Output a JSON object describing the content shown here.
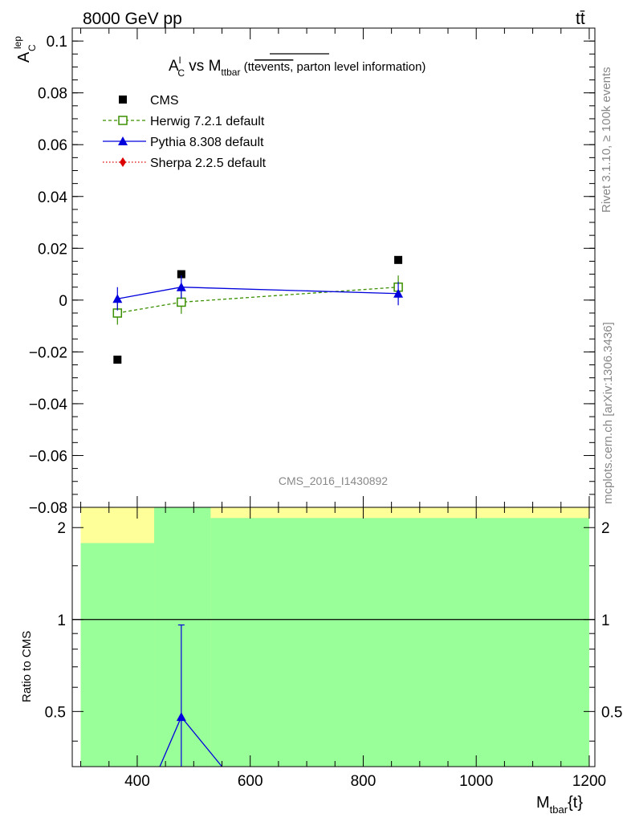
{
  "header": {
    "energy_label": "8000 GeV pp",
    "process_label": "tt̄"
  },
  "side": {
    "rivet_label": "Rivet 3.1.10, ≥ 100k events",
    "source_label": "mcplots.cern.ch [arXiv:1306.3436]"
  },
  "chart_data": [
    {
      "type": "scatter",
      "title_parts": {
        "a": "A",
        "a_sup": "l",
        "a_sub": "C",
        "vs": " vs M",
        "vs_sub": "ttbar",
        "paren_open": " (t",
        "paren_t": "t",
        "overline": "events,",
        "rest": " parton level information)"
      },
      "ylabel_parts": {
        "main": "A",
        "sup": "lep",
        "sub": "C"
      },
      "analysis_label": "CMS_2016_I1430892",
      "ylim": [
        -0.08,
        0.105
      ],
      "xlim": [
        285,
        1210
      ],
      "yticks": [
        {
          "v": 0.1,
          "label": "0.1"
        },
        {
          "v": 0.08,
          "label": "0.08"
        },
        {
          "v": 0.06,
          "label": "0.06"
        },
        {
          "v": 0.04,
          "label": "0.04"
        },
        {
          "v": 0.02,
          "label": "0.02"
        },
        {
          "v": 0,
          "label": "0"
        },
        {
          "v": -0.02,
          "label": "−0.02"
        },
        {
          "v": -0.04,
          "label": "−0.04"
        },
        {
          "v": -0.06,
          "label": "−0.06"
        },
        {
          "v": -0.08,
          "label": "−0.08"
        }
      ],
      "legend_position": "top-left",
      "series": [
        {
          "name": "CMS",
          "color": "#000000",
          "marker": "square",
          "line": "none",
          "points": [
            {
              "x": 365,
              "y": -0.023,
              "err": 0
            },
            {
              "x": 478,
              "y": 0.01,
              "err": 0
            },
            {
              "x": 862,
              "y": 0.0155,
              "err": 0
            }
          ]
        },
        {
          "name": "Herwig 7.2.1 default",
          "color": "#3a8f00",
          "marker": "open-square",
          "line": "dashed",
          "points": [
            {
              "x": 365,
              "y": -0.005,
              "err": 0.0045
            },
            {
              "x": 478,
              "y": -0.0008,
              "err": 0.0045
            },
            {
              "x": 862,
              "y": 0.005,
              "err": 0.0045
            }
          ]
        },
        {
          "name": "Pythia 8.308 default",
          "color": "#0000dd",
          "marker": "triangle",
          "line": "solid",
          "points": [
            {
              "x": 365,
              "y": 0.0005,
              "err": 0.0045
            },
            {
              "x": 478,
              "y": 0.005,
              "err": 0.0045
            },
            {
              "x": 862,
              "y": 0.0025,
              "err": 0.0045
            }
          ]
        },
        {
          "name": "Sherpa 2.2.5 default",
          "color": "#dd0000",
          "marker": "diamond",
          "line": "dotted",
          "points": []
        }
      ]
    },
    {
      "type": "line",
      "ylabel": "Ratio to CMS",
      "xlabel_parts": {
        "main": "M",
        "sub": "tbar",
        "rest": "{t}"
      },
      "xlim": [
        285,
        1210
      ],
      "ylim": [
        0.33,
        2.33
      ],
      "xticks": [
        {
          "v": 400,
          "label": "400"
        },
        {
          "v": 600,
          "label": "600"
        },
        {
          "v": 800,
          "label": "800"
        },
        {
          "v": 1000,
          "label": "1000"
        },
        {
          "v": 1200,
          "label": "1200"
        }
      ],
      "yticks": [
        {
          "v": 0.5,
          "label": "0.5"
        },
        {
          "v": 1,
          "label": "1"
        },
        {
          "v": 2,
          "label": "2"
        }
      ],
      "reference": 1,
      "bands": [
        {
          "x0": 300,
          "x1": 430,
          "y_lo_1sigma": 0.33,
          "y_hi_1sigma": 1.78,
          "y_hi_2sigma": 2.33
        },
        {
          "x0": 430,
          "x1": 530,
          "y_lo_1sigma": 0.33,
          "y_hi_1sigma": 2.33,
          "y_hi_2sigma": 2.33
        },
        {
          "x0": 530,
          "x1": 1200,
          "y_lo_1sigma": 0.33,
          "y_hi_1sigma": 2.15,
          "y_hi_2sigma": 2.33
        }
      ],
      "band_colors": {
        "one_sigma": "#99ff99",
        "two_sigma": "#ffff99"
      },
      "pythia_ratio": {
        "color": "#0000dd",
        "points": [
          {
            "x": 440,
            "y": 0.33
          },
          {
            "x": 478,
            "y": 0.48,
            "err_lo": 0.33,
            "err_hi": 0.96
          },
          {
            "x": 550,
            "y": 0.33
          }
        ]
      }
    }
  ]
}
